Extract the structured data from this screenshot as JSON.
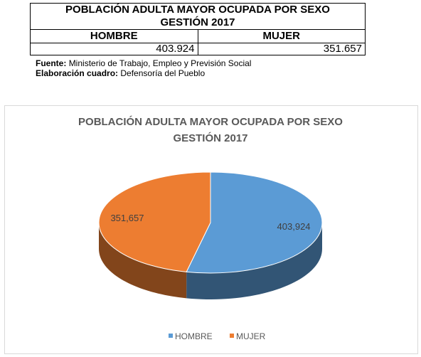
{
  "table": {
    "title": [
      "POBLACIÓN ADULTA MAYOR OCUPADA POR SEXO",
      "GESTIÓN 2017"
    ],
    "headers": [
      "HOMBRE",
      "MUJER"
    ],
    "rows": [
      [
        "403.924",
        "351.657"
      ]
    ]
  },
  "notes": [
    {
      "label": "Fuente:",
      "text": "Ministerio de Trabajo, Empleo y Previsión Social"
    },
    {
      "label": "Elaboración cuadro:",
      "text": "Defensoría del Pueblo"
    }
  ],
  "chart_data": {
    "type": "pie",
    "title": [
      "POBLACIÓN ADULTA MAYOR OCUPADA POR SEXO",
      "GESTIÓN 2017"
    ],
    "categories": [
      "HOMBRE",
      "MUJER"
    ],
    "values": [
      403924,
      351657
    ],
    "value_labels": [
      "403,924",
      "351,657"
    ],
    "colors": [
      "#5b9bd5",
      "#ed7d31"
    ],
    "legend": "bottom"
  }
}
